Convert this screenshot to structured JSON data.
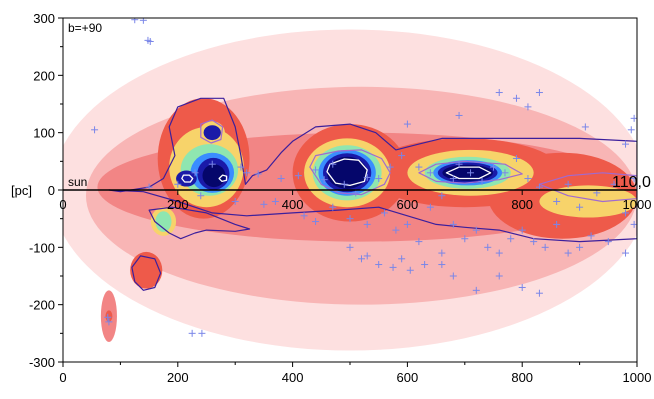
{
  "chart_data": {
    "type": "heatmap",
    "title": "",
    "xlabel": "",
    "ylabel": "[pc]",
    "xlim": [
      0,
      1000
    ],
    "ylim": [
      -300,
      300
    ],
    "x_ticks": [
      0,
      200,
      400,
      600,
      800,
      1000
    ],
    "y_ticks": [
      -300,
      -200,
      -100,
      0,
      100,
      200,
      300
    ],
    "inner_axis_ticks": [
      0,
      200,
      400,
      600,
      800,
      1000
    ],
    "annotations": {
      "latitude": "b=+90",
      "sun": "sun",
      "direction": "110,0"
    },
    "colors": {
      "level1": "#fde0e0",
      "level2": "#f8b5b5",
      "level3": "#f28585",
      "level4": "#ee5a4a",
      "level5": "#f7d36a",
      "level6": "#8fe6b0",
      "level7": "#3a8dff",
      "level8": "#1a1aa8",
      "level9": "#05066b",
      "contour": "#3c1f9c",
      "inner_contour": "#a06ad0",
      "core_contour": "#ffffff",
      "stars": "#7a86e8"
    },
    "density_components": [
      {
        "cx": 500,
        "cy": 0,
        "rx": 520,
        "ry": 280,
        "level": 1
      },
      {
        "cx": 520,
        "cy": -10,
        "rx": 480,
        "ry": 190,
        "level": 2
      },
      {
        "cx": 520,
        "cy": 5,
        "rx": 460,
        "ry": 95,
        "level": 3
      },
      {
        "cx": 245,
        "cy": 55,
        "rx": 80,
        "ry": 105,
        "level": 4
      },
      {
        "cx": 500,
        "cy": 30,
        "rx": 100,
        "ry": 85,
        "level": 4
      },
      {
        "cx": 700,
        "cy": 30,
        "rx": 170,
        "ry": 60,
        "level": 4
      },
      {
        "cx": 870,
        "cy": -10,
        "rx": 130,
        "ry": 75,
        "level": 4
      },
      {
        "cx": 250,
        "cy": 40,
        "rx": 65,
        "ry": 70,
        "level": 5
      },
      {
        "cx": 495,
        "cy": 30,
        "rx": 75,
        "ry": 60,
        "level": 5
      },
      {
        "cx": 710,
        "cy": 30,
        "rx": 110,
        "ry": 40,
        "level": 5
      },
      {
        "cx": 915,
        "cy": -20,
        "rx": 85,
        "ry": 28,
        "level": 5
      },
      {
        "cx": 255,
        "cy": 35,
        "rx": 50,
        "ry": 45,
        "level": 6
      },
      {
        "cx": 495,
        "cy": 30,
        "rx": 60,
        "ry": 48,
        "level": 6
      },
      {
        "cx": 705,
        "cy": 30,
        "rx": 75,
        "ry": 28,
        "level": 6
      },
      {
        "cx": 260,
        "cy": 30,
        "rx": 38,
        "ry": 35,
        "level": 7
      },
      {
        "cx": 495,
        "cy": 30,
        "rx": 50,
        "ry": 40,
        "level": 7
      },
      {
        "cx": 705,
        "cy": 30,
        "rx": 60,
        "ry": 22,
        "level": 7
      },
      {
        "cx": 262,
        "cy": 28,
        "rx": 28,
        "ry": 28,
        "level": 8
      },
      {
        "cx": 495,
        "cy": 30,
        "rx": 42,
        "ry": 34,
        "level": 8
      },
      {
        "cx": 705,
        "cy": 30,
        "rx": 52,
        "ry": 18,
        "level": 8
      },
      {
        "cx": 263,
        "cy": 25,
        "rx": 20,
        "ry": 20,
        "level": 9
      },
      {
        "cx": 495,
        "cy": 30,
        "rx": 35,
        "ry": 28,
        "level": 9
      },
      {
        "cx": 705,
        "cy": 30,
        "rx": 44,
        "ry": 14,
        "level": 9
      },
      {
        "cx": 215,
        "cy": 20,
        "rx": 18,
        "ry": 14,
        "level": 8
      },
      {
        "cx": 260,
        "cy": 100,
        "rx": 22,
        "ry": 20,
        "level": 5
      },
      {
        "cx": 260,
        "cy": 100,
        "rx": 15,
        "ry": 13,
        "level": 8
      },
      {
        "cx": 175,
        "cy": -55,
        "rx": 22,
        "ry": 25,
        "level": 5
      },
      {
        "cx": 175,
        "cy": -55,
        "rx": 14,
        "ry": 18,
        "level": 6
      },
      {
        "cx": 145,
        "cy": -140,
        "rx": 28,
        "ry": 32,
        "level": 4
      },
      {
        "cx": 80,
        "cy": -220,
        "rx": 14,
        "ry": 45,
        "level": 3
      },
      {
        "cx": 80,
        "cy": -220,
        "rx": 6,
        "ry": 10,
        "level": 4
      }
    ],
    "contours": [
      {
        "kind": "outer",
        "points": [
          [
            80,
            0
          ],
          [
            140,
            -3
          ],
          [
            200,
            -20
          ],
          [
            260,
            -40
          ],
          [
            320,
            -45
          ],
          [
            400,
            -40
          ],
          [
            480,
            -35
          ],
          [
            550,
            -30
          ],
          [
            600,
            -45
          ],
          [
            650,
            -60
          ],
          [
            700,
            -65
          ],
          [
            760,
            -70
          ],
          [
            820,
            -85
          ],
          [
            900,
            -90
          ],
          [
            1000,
            -85
          ],
          [
            1000,
            85
          ],
          [
            900,
            90
          ],
          [
            800,
            90
          ],
          [
            720,
            90
          ],
          [
            660,
            90
          ],
          [
            620,
            80
          ],
          [
            580,
            70
          ],
          [
            545,
            100
          ],
          [
            500,
            115
          ],
          [
            440,
            110
          ],
          [
            400,
            85
          ],
          [
            380,
            65
          ],
          [
            355,
            35
          ],
          [
            330,
            25
          ],
          [
            318,
            10
          ],
          [
            310,
            60
          ],
          [
            300,
            110
          ],
          [
            280,
            160
          ],
          [
            240,
            160
          ],
          [
            200,
            145
          ],
          [
            185,
            110
          ],
          [
            195,
            60
          ],
          [
            175,
            20
          ],
          [
            150,
            5
          ],
          [
            100,
            -3
          ],
          [
            80,
            0
          ]
        ]
      },
      {
        "kind": "outer",
        "points": [
          [
            150,
            -35
          ],
          [
            190,
            -30
          ],
          [
            250,
            -40
          ],
          [
            300,
            -60
          ],
          [
            325,
            -68
          ],
          [
            300,
            -72
          ],
          [
            250,
            -70
          ],
          [
            230,
            -75
          ],
          [
            205,
            -85
          ],
          [
            185,
            -75
          ],
          [
            160,
            -55
          ],
          [
            150,
            -35
          ]
        ]
      },
      {
        "kind": "outer",
        "points": [
          [
            120,
            -135
          ],
          [
            135,
            -115
          ],
          [
            160,
            -120
          ],
          [
            170,
            -145
          ],
          [
            160,
            -170
          ],
          [
            140,
            -175
          ],
          [
            125,
            -160
          ],
          [
            120,
            -135
          ]
        ]
      },
      {
        "kind": "inner",
        "points": [
          [
            430,
            40
          ],
          [
            450,
            10
          ],
          [
            480,
            -5
          ],
          [
            520,
            -8
          ],
          [
            560,
            10
          ],
          [
            570,
            30
          ],
          [
            555,
            55
          ],
          [
            520,
            70
          ],
          [
            480,
            68
          ],
          [
            440,
            60
          ],
          [
            430,
            40
          ]
        ]
      },
      {
        "kind": "inner",
        "points": [
          [
            620,
            30
          ],
          [
            650,
            15
          ],
          [
            700,
            12
          ],
          [
            760,
            18
          ],
          [
            800,
            28
          ],
          [
            770,
            45
          ],
          [
            700,
            50
          ],
          [
            650,
            45
          ],
          [
            620,
            30
          ]
        ]
      },
      {
        "kind": "inner",
        "points": [
          [
            830,
            10
          ],
          [
            880,
            -10
          ],
          [
            940,
            -20
          ],
          [
            1000,
            -15
          ],
          [
            1000,
            25
          ],
          [
            940,
            30
          ],
          [
            880,
            25
          ],
          [
            830,
            10
          ]
        ]
      },
      {
        "kind": "inner",
        "points": [
          [
            240,
            115
          ],
          [
            260,
            122
          ],
          [
            278,
            110
          ],
          [
            275,
            88
          ],
          [
            258,
            82
          ],
          [
            240,
            92
          ],
          [
            240,
            115
          ]
        ]
      },
      {
        "kind": "core",
        "points": [
          [
            460,
            32
          ],
          [
            475,
            12
          ],
          [
            500,
            8
          ],
          [
            525,
            15
          ],
          [
            530,
            35
          ],
          [
            515,
            52
          ],
          [
            490,
            54
          ],
          [
            465,
            45
          ],
          [
            460,
            32
          ]
        ]
      },
      {
        "kind": "core",
        "points": [
          [
            668,
            30
          ],
          [
            690,
            20
          ],
          [
            725,
            20
          ],
          [
            745,
            30
          ],
          [
            725,
            40
          ],
          [
            690,
            40
          ],
          [
            668,
            30
          ]
        ]
      },
      {
        "kind": "core",
        "points": [
          [
            207,
            20
          ],
          [
            212,
            14
          ],
          [
            222,
            14
          ],
          [
            226,
            20
          ],
          [
            220,
            26
          ],
          [
            210,
            26
          ],
          [
            207,
            20
          ]
        ]
      },
      {
        "kind": "core",
        "points": [
          [
            272,
            20
          ],
          [
            277,
            15
          ],
          [
            285,
            17
          ],
          [
            285,
            24
          ],
          [
            278,
            26
          ],
          [
            272,
            20
          ]
        ]
      }
    ],
    "stars": [
      [
        125,
        297
      ],
      [
        140,
        296
      ],
      [
        148,
        261
      ],
      [
        152,
        259
      ],
      [
        55,
        105
      ],
      [
        78,
        -222
      ],
      [
        80,
        -230
      ],
      [
        225,
        -250
      ],
      [
        242,
        -250
      ],
      [
        320,
        30
      ],
      [
        340,
        28
      ],
      [
        380,
        20
      ],
      [
        410,
        25
      ],
      [
        440,
        35
      ],
      [
        455,
        18
      ],
      [
        470,
        45
      ],
      [
        490,
        10
      ],
      [
        510,
        -5
      ],
      [
        530,
        22
      ],
      [
        550,
        20
      ],
      [
        570,
        40
      ],
      [
        590,
        60
      ],
      [
        600,
        115
      ],
      [
        620,
        40
      ],
      [
        640,
        30
      ],
      [
        660,
        -10
      ],
      [
        680,
        20
      ],
      [
        690,
        45
      ],
      [
        710,
        30
      ],
      [
        730,
        15
      ],
      [
        750,
        40
      ],
      [
        770,
        30
      ],
      [
        790,
        55
      ],
      [
        810,
        20
      ],
      [
        830,
        5
      ],
      [
        860,
        -20
      ],
      [
        880,
        10
      ],
      [
        900,
        -30
      ],
      [
        930,
        -5
      ],
      [
        960,
        10
      ],
      [
        980,
        -40
      ],
      [
        995,
        20
      ],
      [
        350,
        -25
      ],
      [
        370,
        -20
      ],
      [
        420,
        -45
      ],
      [
        440,
        -55
      ],
      [
        470,
        -30
      ],
      [
        500,
        -50
      ],
      [
        530,
        -60
      ],
      [
        560,
        -40
      ],
      [
        580,
        -70
      ],
      [
        600,
        -60
      ],
      [
        620,
        -90
      ],
      [
        640,
        -30
      ],
      [
        660,
        -110
      ],
      [
        680,
        -60
      ],
      [
        700,
        -85
      ],
      [
        720,
        -70
      ],
      [
        740,
        -100
      ],
      [
        760,
        -110
      ],
      [
        780,
        -85
      ],
      [
        800,
        -70
      ],
      [
        820,
        -90
      ],
      [
        840,
        -100
      ],
      [
        860,
        -60
      ],
      [
        880,
        -110
      ],
      [
        900,
        -100
      ],
      [
        920,
        -80
      ],
      [
        950,
        -90
      ],
      [
        980,
        -110
      ],
      [
        995,
        -60
      ],
      [
        500,
        -100
      ],
      [
        520,
        -120
      ],
      [
        530,
        -115
      ],
      [
        550,
        -130
      ],
      [
        575,
        -135
      ],
      [
        590,
        -120
      ],
      [
        605,
        -140
      ],
      [
        630,
        -130
      ],
      [
        660,
        -130
      ],
      [
        680,
        -150
      ],
      [
        720,
        -175
      ],
      [
        760,
        -150
      ],
      [
        800,
        -170
      ],
      [
        830,
        -180
      ],
      [
        760,
        170
      ],
      [
        790,
        160
      ],
      [
        830,
        170
      ],
      [
        810,
        145
      ],
      [
        690,
        130
      ],
      [
        995,
        125
      ],
      [
        990,
        105
      ],
      [
        910,
        110
      ],
      [
        980,
        80
      ],
      [
        150,
        5
      ],
      [
        200,
        10
      ],
      [
        240,
        -10
      ],
      [
        300,
        -20
      ],
      [
        310,
        40
      ],
      [
        260,
        45
      ],
      [
        230,
        30
      ]
    ]
  }
}
